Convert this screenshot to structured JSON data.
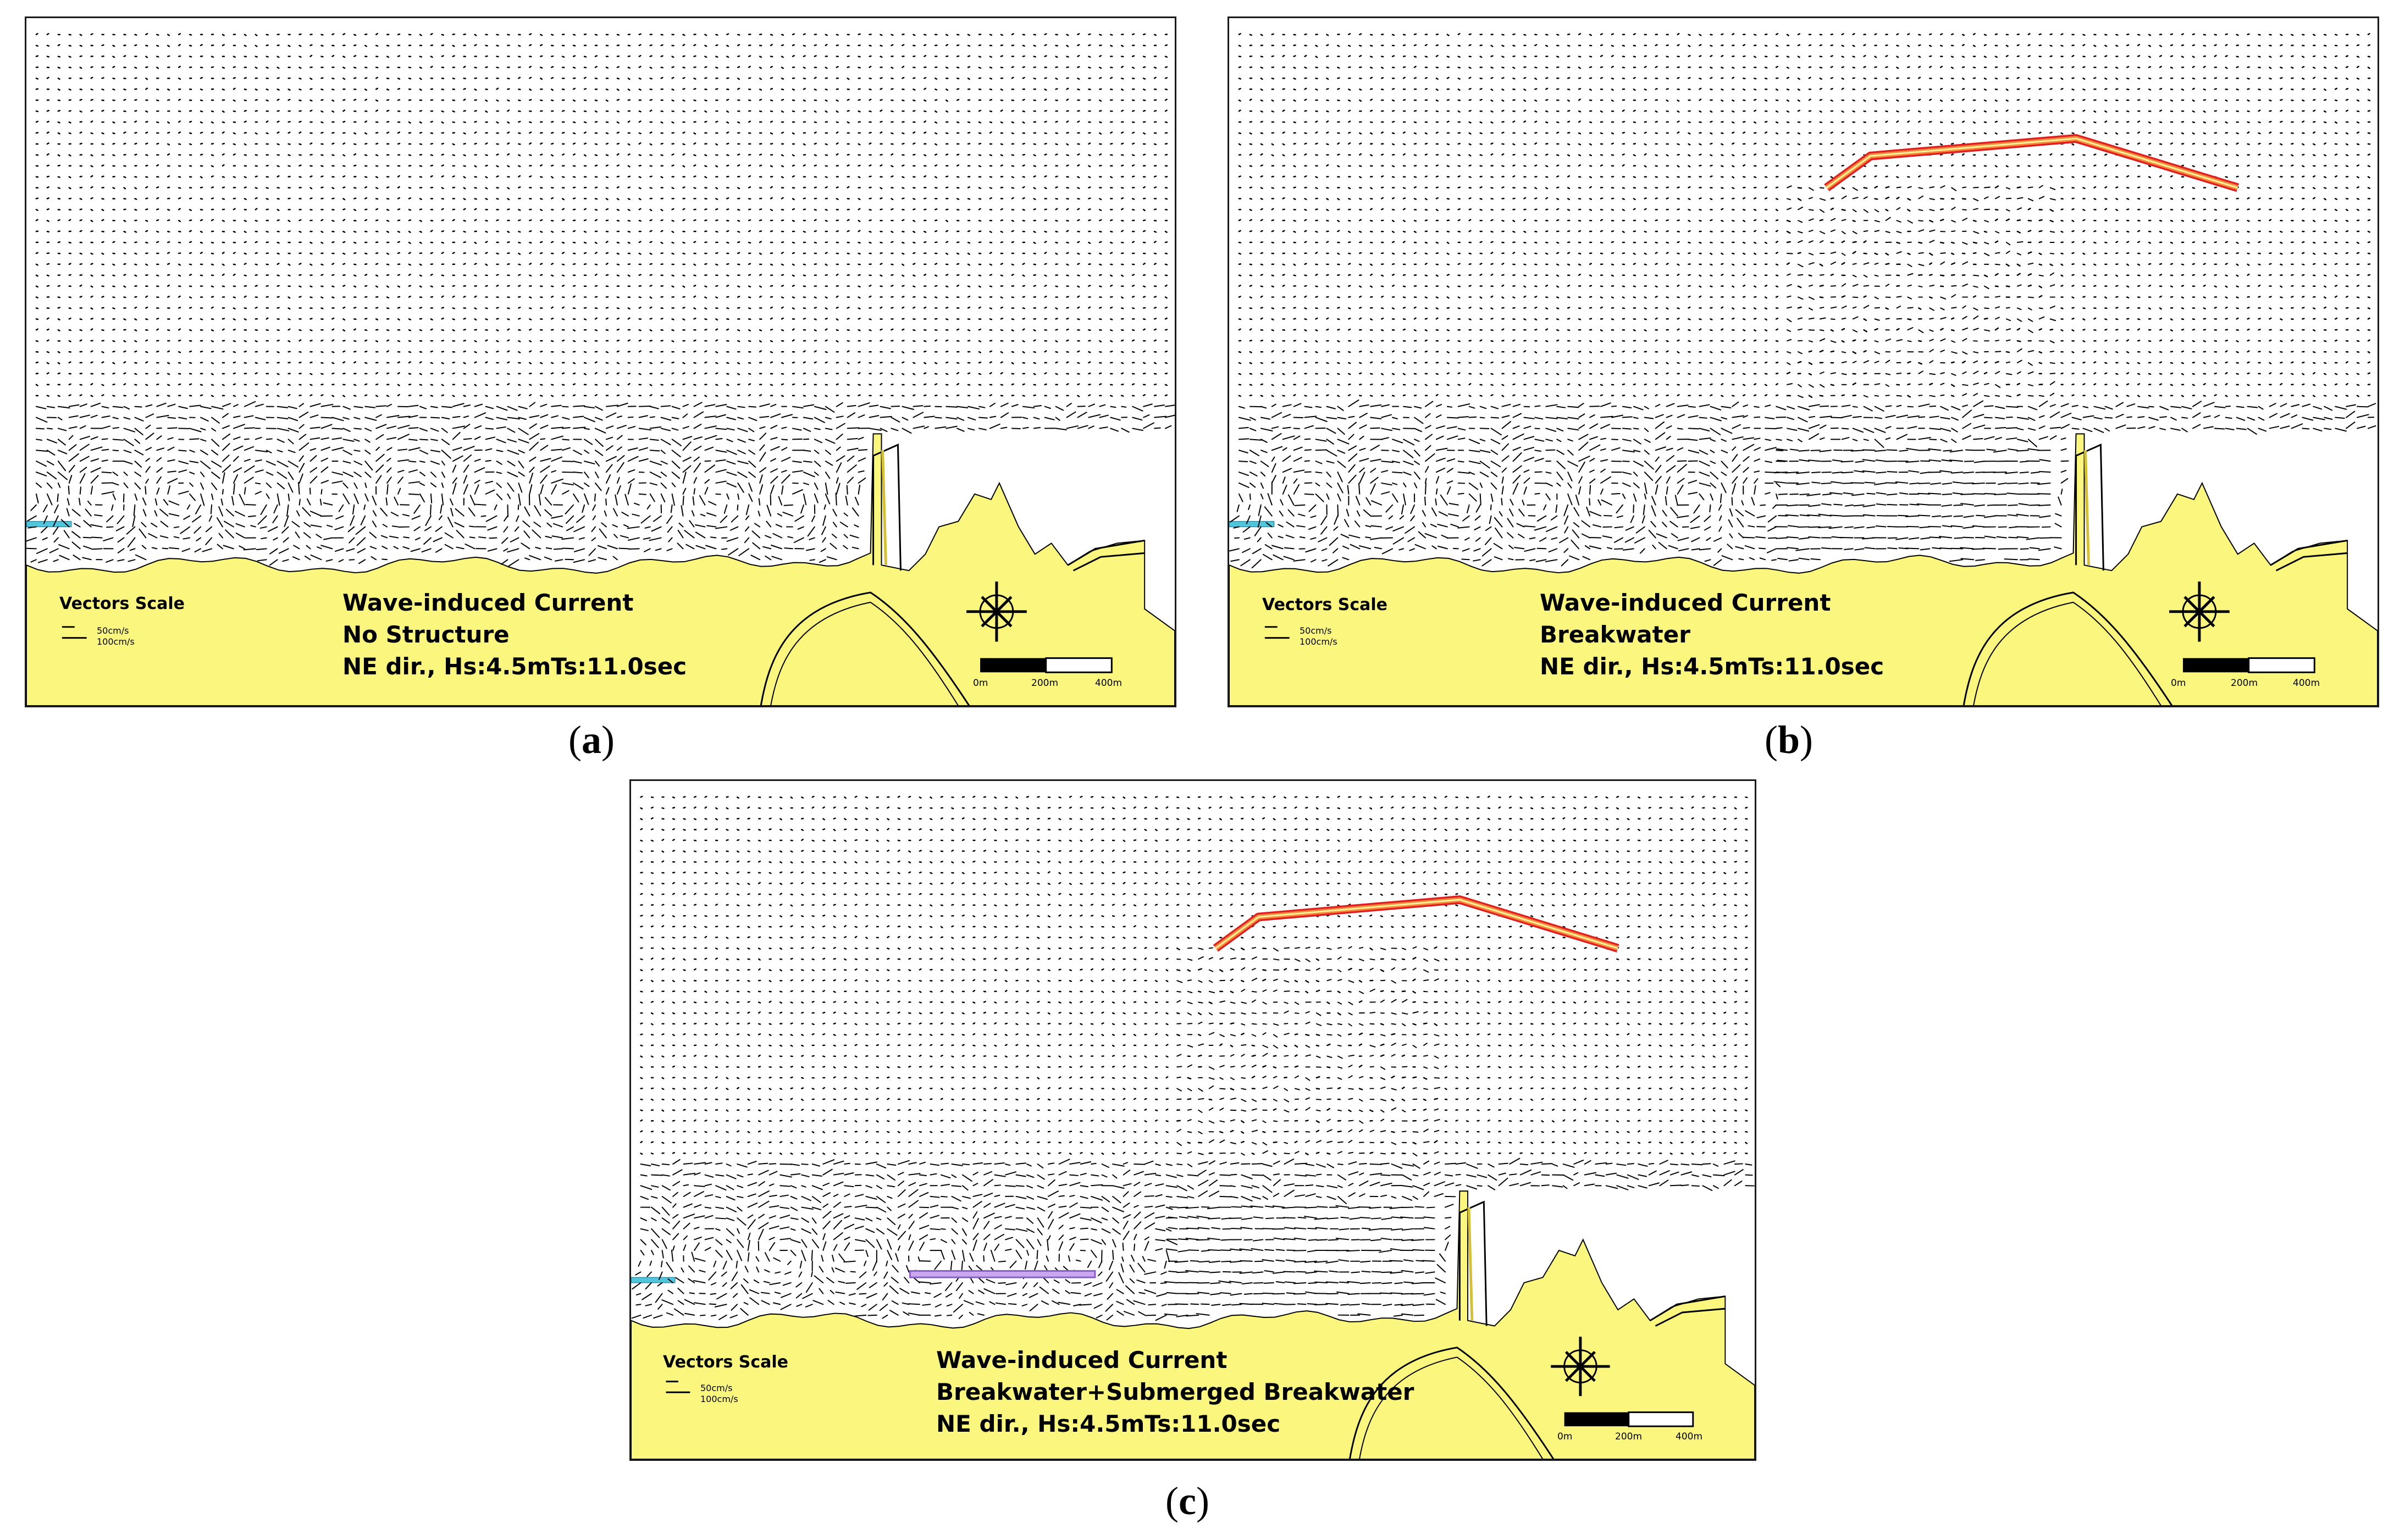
{
  "figure": {
    "panels": [
      {
        "caption": "a",
        "title": [
          "Wave-induced Current",
          "No Structure",
          "NE dir., Hs:4.5mTs:11.0sec"
        ],
        "vectors_scale": {
          "label": "Vectors Scale",
          "items": [
            "50cm/s",
            "100cm/s"
          ]
        },
        "scale_bar": [
          "0m",
          "200m",
          "400m"
        ],
        "structures": []
      },
      {
        "caption": "b",
        "title": [
          "Wave-induced Current",
          "Breakwater",
          "NE dir., Hs:4.5mTs:11.0sec"
        ],
        "vectors_scale": {
          "label": "Vectors Scale",
          "items": [
            "50cm/s",
            "100cm/s"
          ]
        },
        "scale_bar": [
          "0m",
          "200m",
          "400m"
        ],
        "structures": [
          "breakwater"
        ]
      },
      {
        "caption": "c",
        "title": [
          "Wave-induced Current",
          "Breakwater+Submerged Breakwater",
          "NE dir., Hs:4.5mTs:11.0sec"
        ],
        "vectors_scale": {
          "label": "Vectors Scale",
          "items": [
            "50cm/s",
            "100cm/s"
          ]
        },
        "scale_bar": [
          "0m",
          "200m",
          "400m"
        ],
        "structures": [
          "breakwater",
          "submerged-breakwater"
        ]
      }
    ],
    "colors": {
      "land": "#fbf77e",
      "sea": "#ffffff",
      "breakwater": "#f58a3c",
      "submerged_breakwater": "#8a5cc8",
      "inlet_marker": "#4fc6dc",
      "vectors": "#000000"
    },
    "icons": [
      "compass-rose-icon",
      "scale-bar",
      "current-vector-arrow"
    ]
  }
}
